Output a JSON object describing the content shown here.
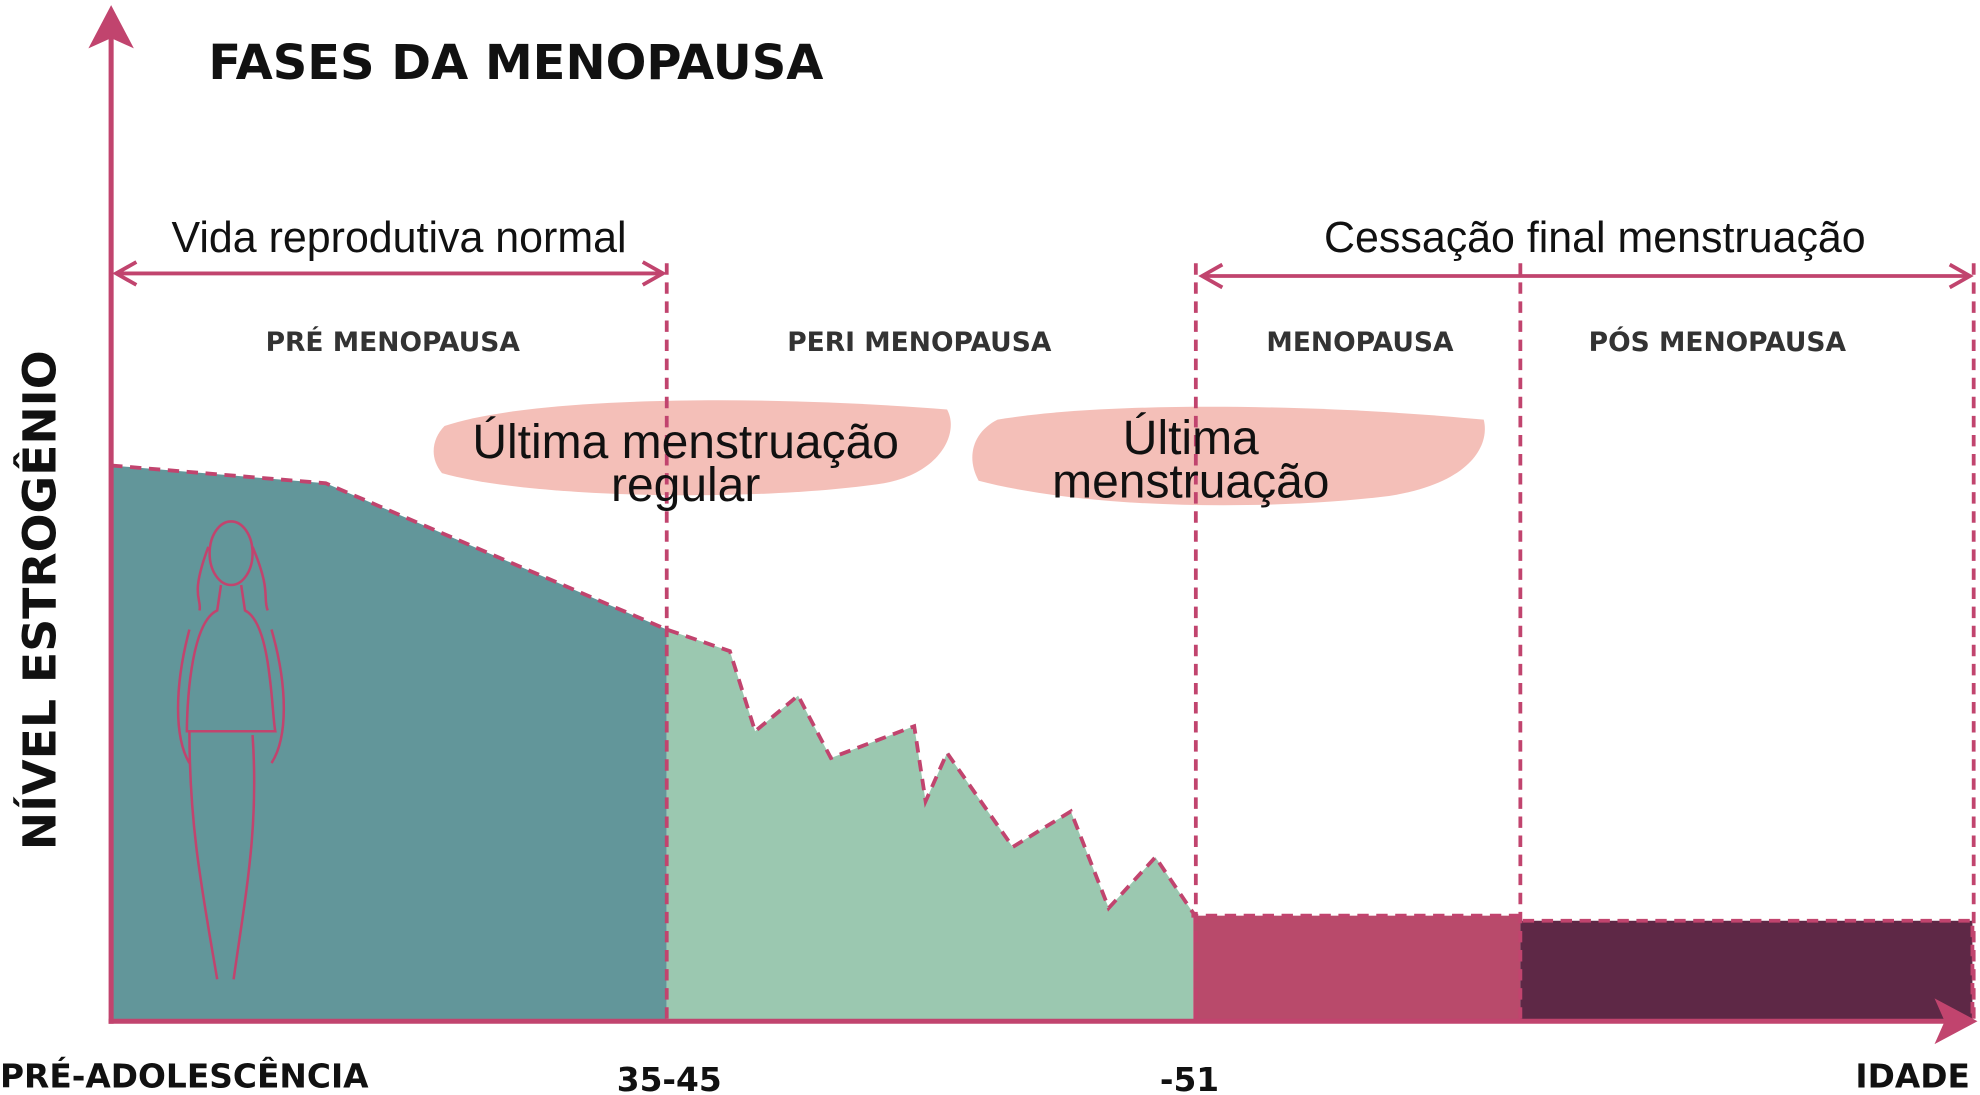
{
  "title": "FASES DA MENOPAUSA",
  "y_axis_label": "NÍVEL ESTROGÊNIO",
  "x_axis_label": "IDADE",
  "x_labels": [
    "PRÉ-ADOLESCÊNCIA",
    "35-45",
    "-51"
  ],
  "spans": [
    "Vida reprodutiva normal",
    "Cessação final menstruação"
  ],
  "phases": [
    "PRÉ MENOPAUSA",
    "PERI MENOPAUSA",
    "MENOPAUSA",
    "PÓS MENOPAUSA"
  ],
  "annotations": [
    {
      "lines": [
        "Última menstruação",
        "regular"
      ]
    },
    {
      "lines": [
        "Última",
        "menstruação"
      ]
    }
  ]
}
